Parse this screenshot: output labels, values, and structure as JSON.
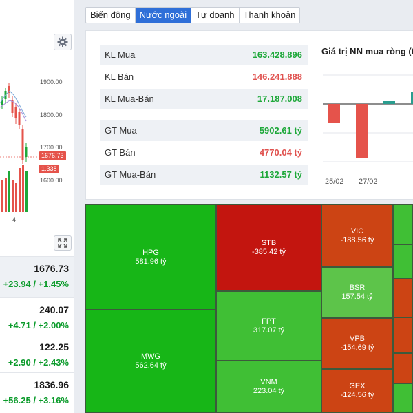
{
  "left_panel": {
    "price_levels": [
      "1900.00",
      "1800.00",
      "1700.00",
      "1600.00"
    ],
    "current_price_tag": "1676.73",
    "volume_tag": "1.338",
    "x_tick": "4",
    "colors": {
      "price_tag": "#e5534b",
      "candle_up": "#1ea83a",
      "candle_down": "#e5534b"
    },
    "indices": [
      {
        "value": "1676.73",
        "change": "+23.94 / +1.45%"
      },
      {
        "value": "240.07",
        "change": "+4.71 / +2.00%"
      },
      {
        "value": "122.25",
        "change": "+2.90 / +2.43%"
      },
      {
        "value": "1836.96",
        "change": "+56.25 / +3.16%"
      }
    ]
  },
  "tabs": [
    {
      "label": "Biến động",
      "active": false
    },
    {
      "label": "Nước ngoài",
      "active": true
    },
    {
      "label": "Tự doanh",
      "active": false
    },
    {
      "label": "Thanh khoản",
      "active": false
    }
  ],
  "stats": [
    {
      "label": "KL Mua",
      "value": "163.428.896",
      "color": "green"
    },
    {
      "label": "KL Bán",
      "value": "146.241.888",
      "color": "red"
    },
    {
      "label": "KL Mua-Bán",
      "value": "17.187.008",
      "color": "green"
    },
    {
      "label": "GT Mua",
      "value": "5902.61 tỷ",
      "color": "green"
    },
    {
      "label": "GT Bán",
      "value": "4770.04 tỷ",
      "color": "red"
    },
    {
      "label": "GT Mua-Bán",
      "value": "1132.57 tỷ",
      "color": "green"
    }
  ],
  "net_chart": {
    "title": "Giá trị NN mua ròng (t",
    "x_labels": [
      "25/02",
      "27/02"
    ],
    "colors": {
      "negative": "#e5534b",
      "positive": "#2a9d8f"
    }
  },
  "treemap": {
    "unit": "tỷ",
    "cells": [
      {
        "symbol": "HPG",
        "value": "581.96 tỷ",
        "color": "#17b617"
      },
      {
        "symbol": "MWG",
        "value": "562.64 tỷ",
        "color": "#17b617"
      },
      {
        "symbol": "STB",
        "value": "-385.42 tỷ",
        "color": "#c3150f"
      },
      {
        "symbol": "FPT",
        "value": "317.07 tỷ",
        "color": "#40bf35"
      },
      {
        "symbol": "VNM",
        "value": "223.04 tỷ",
        "color": "#40bf35"
      },
      {
        "symbol": "VIC",
        "value": "-188.56 tỷ",
        "color": "#cc4414"
      },
      {
        "symbol": "BSR",
        "value": "157.54 tỷ",
        "color": "#5dc44a"
      },
      {
        "symbol": "VPB",
        "value": "-154.69 tỷ",
        "color": "#cc4414"
      },
      {
        "symbol": "GEX",
        "value": "-124.56 tỷ",
        "color": "#cc4414"
      }
    ]
  }
}
